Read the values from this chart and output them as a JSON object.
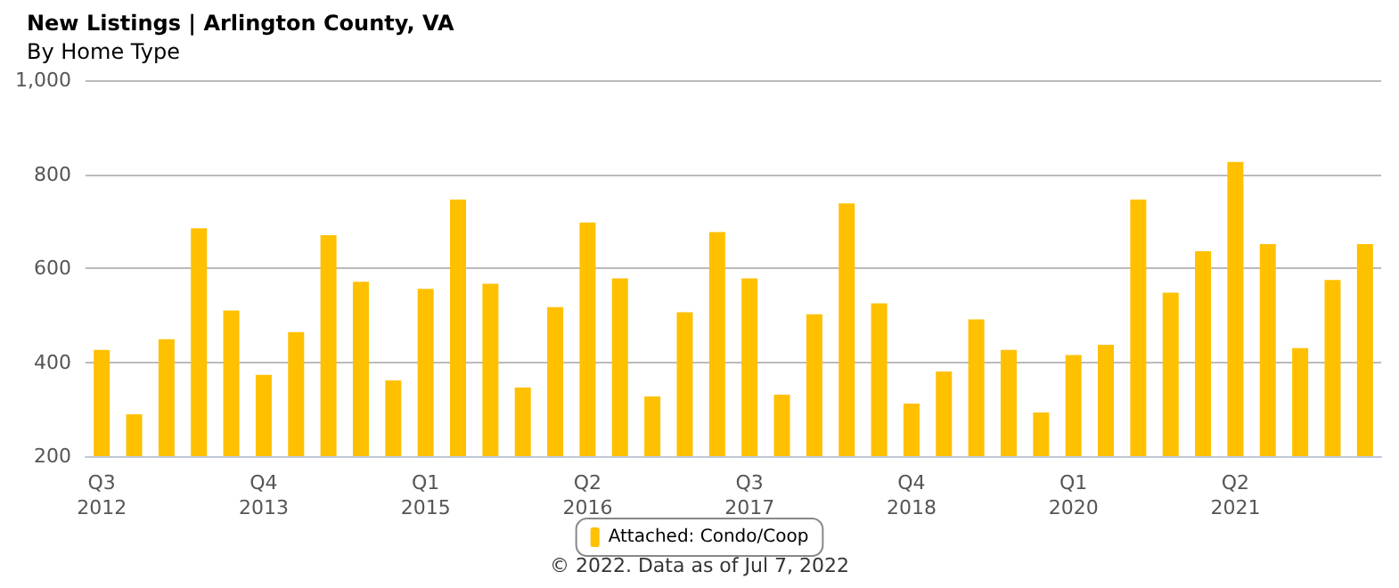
{
  "chart_data": {
    "type": "bar",
    "title": "New Listings | Arlington County, VA",
    "subtitle": "By Home Type",
    "categories": [
      "Q3\n2012",
      null,
      null,
      null,
      null,
      "Q4\n2013",
      null,
      null,
      null,
      null,
      "Q1\n2015",
      null,
      null,
      null,
      null,
      "Q2\n2016",
      null,
      null,
      null,
      null,
      "Q3\n2017",
      null,
      null,
      null,
      null,
      "Q4\n2018",
      null,
      null,
      null,
      null,
      "Q1\n2020",
      null,
      null,
      null,
      null,
      "Q2\n2021",
      null,
      null,
      null,
      null
    ],
    "series": [
      {
        "name": "Attached: Condo/Coop",
        "color": "#ffc000",
        "values": [
          426,
          289,
          449,
          685,
          510,
          373,
          464,
          670,
          571,
          361,
          556,
          746,
          567,
          346,
          517,
          697,
          578,
          327,
          506,
          677,
          578,
          331,
          502,
          738,
          525,
          312,
          380,
          491,
          426,
          293,
          415,
          437,
          746,
          548,
          636,
          826,
          651,
          430,
          575,
          651
        ]
      }
    ],
    "ylim": [
      200,
      1000
    ],
    "yticks": [
      200,
      400,
      600,
      800,
      {
        "value": 1000,
        "label": "1,000"
      }
    ],
    "grid": "y",
    "legend": "bottom",
    "annotations": [
      "© 2022. Data as of Jul 7, 2022"
    ]
  }
}
